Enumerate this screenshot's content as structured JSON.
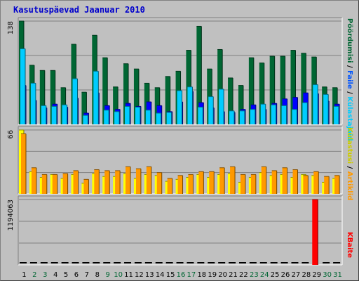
{
  "title": "Kasutuspäevad Jaanuar 2010",
  "colors": {
    "hits": "#006633",
    "files": "#00ccff",
    "sites": "#0000ff",
    "visits": "#ffff00",
    "pages": "#ff9900",
    "kbytes": "#ff0000",
    "weekend_label": "#006633",
    "weekday_label": "#000000"
  },
  "legend": {
    "hits": "Pöördumisi",
    "files": "Faile",
    "sites": "Külastajaid",
    "sites2": "Külastusi",
    "pages": "Artiklid",
    "kbytes": "KBaite",
    "sep": "/"
  },
  "chart_data": [
    {
      "type": "bar",
      "name": "hits-files-sites",
      "ylim": [
        0,
        138
      ],
      "tick_label": "138",
      "categories": [
        "1",
        "2",
        "3",
        "4",
        "5",
        "6",
        "7",
        "8",
        "9",
        "10",
        "11",
        "12",
        "13",
        "14",
        "15",
        "16",
        "17",
        "18",
        "19",
        "20",
        "21",
        "22",
        "23",
        "24",
        "25",
        "26",
        "27",
        "28",
        "29",
        "30",
        "31"
      ],
      "weekend": [
        false,
        true,
        true,
        false,
        false,
        false,
        false,
        false,
        true,
        true,
        false,
        false,
        false,
        false,
        false,
        true,
        true,
        false,
        false,
        false,
        false,
        false,
        true,
        true,
        false,
        false,
        false,
        false,
        false,
        true,
        true
      ],
      "series": [
        {
          "key": "hits",
          "values": [
            138,
            79,
            72,
            72,
            49,
            107,
            43,
            119,
            89,
            50,
            81,
            74,
            55,
            49,
            64,
            71,
            99,
            131,
            74,
            100,
            62,
            52,
            89,
            82,
            91,
            91,
            99,
            95,
            90,
            50,
            49
          ]
        },
        {
          "key": "sites",
          "values": [
            52,
            32,
            22,
            27,
            23,
            35,
            15,
            42,
            25,
            20,
            28,
            24,
            30,
            25,
            17,
            30,
            44,
            29,
            22,
            17,
            16,
            20,
            26,
            20,
            28,
            34,
            36,
            42,
            41,
            31,
            27
          ]
        },
        {
          "key": "files",
          "values": [
            101,
            55,
            25,
            24,
            26,
            61,
            12,
            71,
            19,
            17,
            24,
            23,
            19,
            15,
            16,
            45,
            50,
            23,
            37,
            47,
            18,
            18,
            20,
            27,
            26,
            25,
            20,
            29,
            53,
            40,
            24
          ]
        }
      ]
    },
    {
      "type": "bar",
      "name": "visits-pages",
      "ylim": [
        0,
        66
      ],
      "tick_label": "66",
      "categories": [
        "1",
        "2",
        "3",
        "4",
        "5",
        "6",
        "7",
        "8",
        "9",
        "10",
        "11",
        "12",
        "13",
        "14",
        "15",
        "16",
        "17",
        "18",
        "19",
        "20",
        "21",
        "22",
        "23",
        "24",
        "25",
        "26",
        "27",
        "28",
        "29",
        "30",
        "31"
      ],
      "series": [
        {
          "key": "visits",
          "values": [
            66,
            23,
            17,
            20,
            16,
            20,
            11,
            21,
            18,
            18,
            21,
            16,
            20,
            19,
            13,
            15,
            17,
            20,
            17,
            20,
            21,
            12,
            17,
            22,
            19,
            20,
            17,
            20,
            19,
            12,
            16
          ]
        },
        {
          "key": "pages",
          "values": [
            62,
            27,
            20,
            20,
            21,
            24,
            15,
            25,
            24,
            24,
            28,
            26,
            28,
            22,
            16,
            19,
            20,
            23,
            23,
            27,
            28,
            20,
            20,
            28,
            24,
            27,
            25,
            19,
            23,
            18,
            19
          ]
        }
      ]
    },
    {
      "type": "bar",
      "name": "kbytes",
      "ylim": [
        0,
        1194063
      ],
      "tick_label": "1194063",
      "categories": [
        "1",
        "2",
        "3",
        "4",
        "5",
        "6",
        "7",
        "8",
        "9",
        "10",
        "11",
        "12",
        "13",
        "14",
        "15",
        "16",
        "17",
        "18",
        "19",
        "20",
        "21",
        "22",
        "23",
        "24",
        "25",
        "26",
        "27",
        "28",
        "29",
        "30",
        "31"
      ],
      "series": [
        {
          "key": "kbytes",
          "values": [
            0,
            0,
            0,
            0,
            0,
            0,
            0,
            0,
            0,
            0,
            0,
            0,
            0,
            0,
            0,
            0,
            0,
            0,
            0,
            0,
            0,
            0,
            0,
            0,
            0,
            0,
            0,
            0,
            1194063,
            0,
            0
          ]
        }
      ]
    }
  ]
}
